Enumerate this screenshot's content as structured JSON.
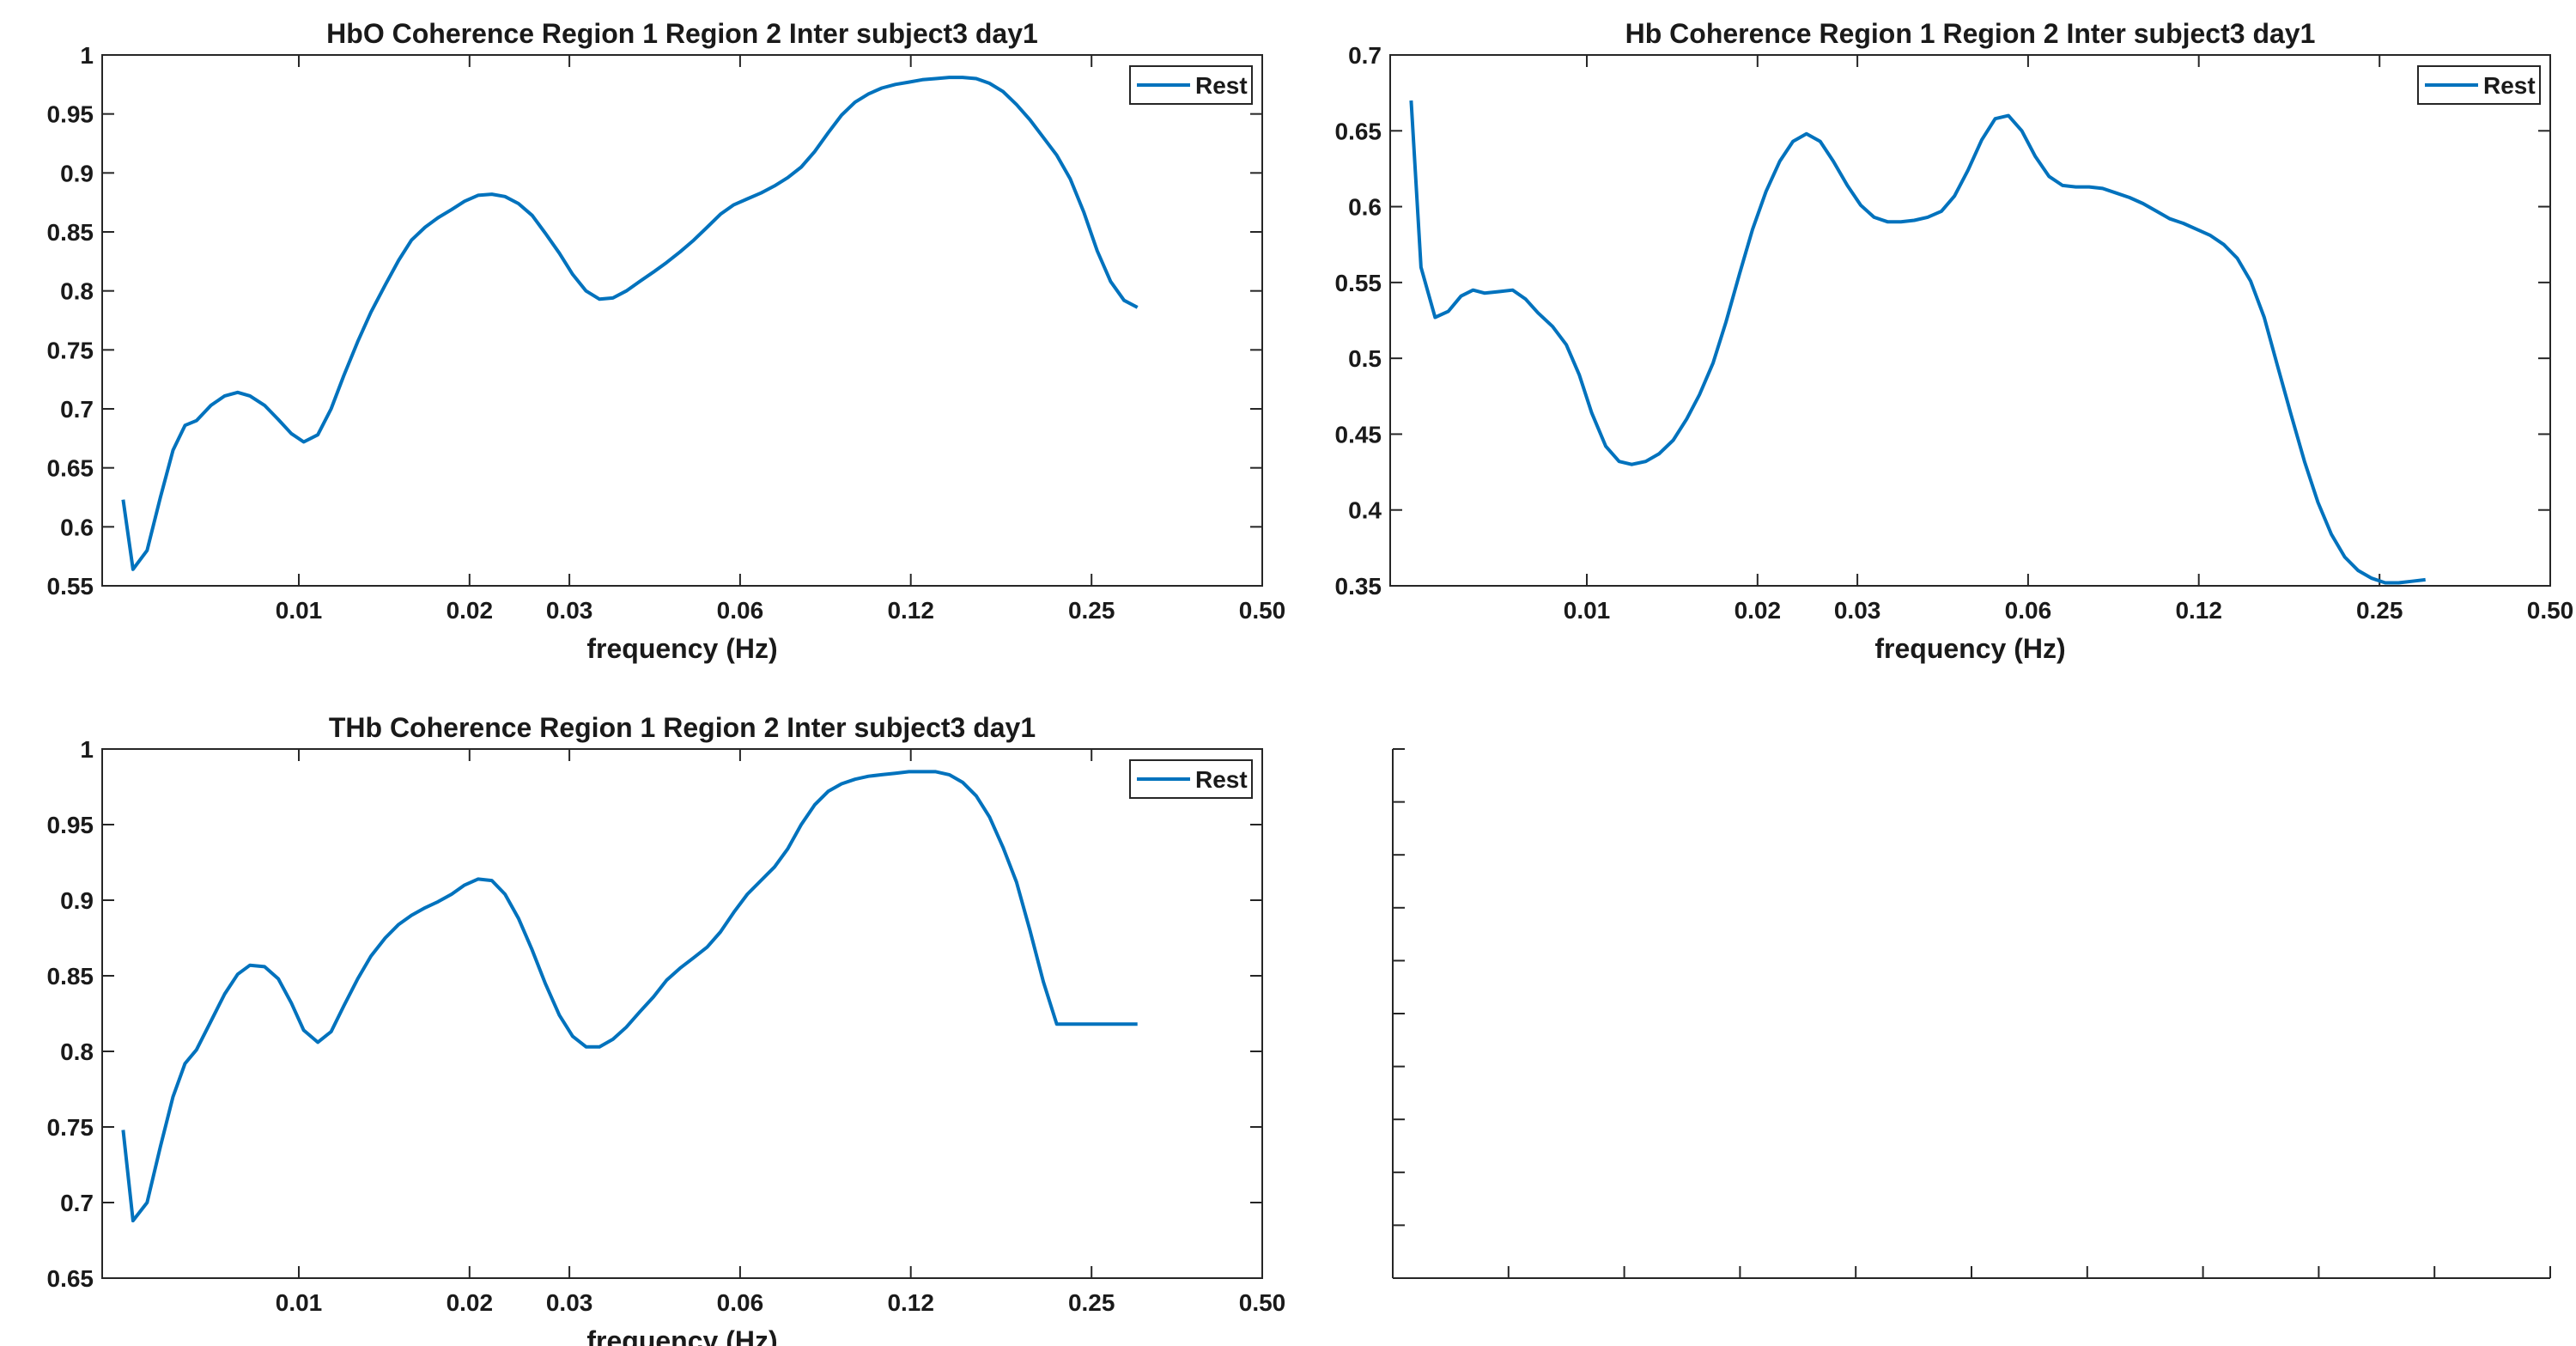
{
  "chart_data": [
    {
      "type": "line",
      "title": "HbO Coherence Region 1 Region 2 Inter subject3 day1",
      "xlabel": "frequency (Hz)",
      "ylabel": "",
      "x_scale": "log",
      "xlim": [
        0.0045,
        0.5
      ],
      "ylim": [
        0.55,
        1
      ],
      "xticks": [
        {
          "value": 0.01,
          "label": "0.01"
        },
        {
          "value": 0.02,
          "label": "0.02"
        },
        {
          "value": 0.03,
          "label": "0.03"
        },
        {
          "value": 0.06,
          "label": "0.06"
        },
        {
          "value": 0.12,
          "label": "0.12"
        },
        {
          "value": 0.25,
          "label": "0.25"
        },
        {
          "value": 0.5,
          "label": "0.50"
        }
      ],
      "yticks": [
        {
          "value": 0.55,
          "label": "0.55"
        },
        {
          "value": 0.6,
          "label": "0.6"
        },
        {
          "value": 0.65,
          "label": "0.65"
        },
        {
          "value": 0.7,
          "label": "0.7"
        },
        {
          "value": 0.75,
          "label": "0.75"
        },
        {
          "value": 0.8,
          "label": "0.8"
        },
        {
          "value": 0.85,
          "label": "0.85"
        },
        {
          "value": 0.9,
          "label": "0.9"
        },
        {
          "value": 0.95,
          "label": "0.95"
        },
        {
          "value": 1,
          "label": "1"
        }
      ],
      "legend": {
        "position": "top-right"
      },
      "series": [
        {
          "name": "Rest",
          "color": "#0072BD",
          "x": [
            0.0049,
            0.0051,
            0.0054,
            0.0057,
            0.006,
            0.0063,
            0.0066,
            0.007,
            0.0074,
            0.0078,
            0.0082,
            0.0087,
            0.0092,
            0.0097,
            0.0102,
            0.0108,
            0.0114,
            0.012,
            0.0127,
            0.0134,
            0.0142,
            0.015,
            0.0158,
            0.0167,
            0.0176,
            0.0186,
            0.0196,
            0.0207,
            0.0219,
            0.0231,
            0.0244,
            0.0258,
            0.0272,
            0.0288,
            0.0304,
            0.0321,
            0.0339,
            0.0358,
            0.0378,
            0.0399,
            0.0422,
            0.0445,
            0.047,
            0.0497,
            0.0525,
            0.0554,
            0.0585,
            0.0618,
            0.0653,
            0.069,
            0.0728,
            0.0769,
            0.0812,
            0.0858,
            0.0906,
            0.0957,
            0.1011,
            0.1067,
            0.1127,
            0.1191,
            0.1258,
            0.1328,
            0.1403,
            0.1481,
            0.1565,
            0.1652,
            0.1745,
            0.1843,
            0.1947,
            0.2056,
            0.2171,
            0.2293,
            0.2422,
            0.2558,
            0.2701,
            0.2853,
            0.3013
          ],
          "values": [
            0.623,
            0.564,
            0.58,
            0.625,
            0.665,
            0.686,
            0.69,
            0.703,
            0.711,
            0.714,
            0.711,
            0.703,
            0.691,
            0.679,
            0.672,
            0.678,
            0.7,
            0.728,
            0.757,
            0.782,
            0.805,
            0.826,
            0.843,
            0.854,
            0.862,
            0.869,
            0.876,
            0.881,
            0.882,
            0.88,
            0.874,
            0.864,
            0.849,
            0.832,
            0.814,
            0.8,
            0.793,
            0.794,
            0.8,
            0.808,
            0.816,
            0.824,
            0.833,
            0.843,
            0.854,
            0.865,
            0.873,
            0.878,
            0.883,
            0.889,
            0.896,
            0.905,
            0.918,
            0.934,
            0.949,
            0.96,
            0.967,
            0.972,
            0.975,
            0.977,
            0.979,
            0.98,
            0.981,
            0.981,
            0.98,
            0.976,
            0.969,
            0.958,
            0.945,
            0.93,
            0.915,
            0.895,
            0.867,
            0.834,
            0.808,
            0.792,
            0.786
          ]
        }
      ]
    },
    {
      "type": "line",
      "title": "Hb Coherence Region 1 Region 2 Inter subject3 day1",
      "xlabel": "frequency (Hz)",
      "ylabel": "",
      "x_scale": "log",
      "xlim": [
        0.0045,
        0.5
      ],
      "ylim": [
        0.35,
        0.7
      ],
      "xticks": [
        {
          "value": 0.01,
          "label": "0.01"
        },
        {
          "value": 0.02,
          "label": "0.02"
        },
        {
          "value": 0.03,
          "label": "0.03"
        },
        {
          "value": 0.06,
          "label": "0.06"
        },
        {
          "value": 0.12,
          "label": "0.12"
        },
        {
          "value": 0.25,
          "label": "0.25"
        },
        {
          "value": 0.5,
          "label": "0.50"
        }
      ],
      "yticks": [
        {
          "value": 0.35,
          "label": "0.35"
        },
        {
          "value": 0.4,
          "label": "0.4"
        },
        {
          "value": 0.45,
          "label": "0.45"
        },
        {
          "value": 0.5,
          "label": "0.5"
        },
        {
          "value": 0.55,
          "label": "0.55"
        },
        {
          "value": 0.6,
          "label": "0.6"
        },
        {
          "value": 0.65,
          "label": "0.65"
        },
        {
          "value": 0.7,
          "label": "0.7"
        }
      ],
      "legend": {
        "position": "top-right"
      },
      "series": [
        {
          "name": "Rest",
          "color": "#0072BD",
          "x": [
            0.0049,
            0.0051,
            0.0054,
            0.0057,
            0.006,
            0.0063,
            0.0066,
            0.007,
            0.0074,
            0.0078,
            0.0082,
            0.0087,
            0.0092,
            0.0097,
            0.0102,
            0.0108,
            0.0114,
            0.012,
            0.0127,
            0.0134,
            0.0142,
            0.015,
            0.0158,
            0.0167,
            0.0176,
            0.0186,
            0.0196,
            0.0207,
            0.0219,
            0.0231,
            0.0244,
            0.0258,
            0.0272,
            0.0288,
            0.0304,
            0.0321,
            0.0339,
            0.0358,
            0.0378,
            0.0399,
            0.0422,
            0.0445,
            0.047,
            0.0497,
            0.0525,
            0.0554,
            0.0585,
            0.0618,
            0.0653,
            0.069,
            0.0728,
            0.0769,
            0.0812,
            0.0858,
            0.0906,
            0.0957,
            0.1011,
            0.1067,
            0.1127,
            0.1191,
            0.1258,
            0.1328,
            0.1403,
            0.1481,
            0.1565,
            0.1652,
            0.1745,
            0.1843,
            0.1947,
            0.2056,
            0.2171,
            0.2293,
            0.2422,
            0.2558,
            0.2701,
            0.2853,
            0.3013
          ],
          "values": [
            0.67,
            0.56,
            0.527,
            0.531,
            0.541,
            0.545,
            0.543,
            0.544,
            0.545,
            0.539,
            0.53,
            0.521,
            0.509,
            0.489,
            0.464,
            0.442,
            0.432,
            0.43,
            0.432,
            0.437,
            0.446,
            0.46,
            0.476,
            0.497,
            0.524,
            0.556,
            0.585,
            0.61,
            0.63,
            0.643,
            0.648,
            0.643,
            0.63,
            0.614,
            0.601,
            0.593,
            0.59,
            0.59,
            0.591,
            0.593,
            0.597,
            0.607,
            0.624,
            0.644,
            0.658,
            0.66,
            0.65,
            0.633,
            0.62,
            0.614,
            0.613,
            0.613,
            0.612,
            0.609,
            0.606,
            0.602,
            0.597,
            0.592,
            0.589,
            0.585,
            0.581,
            0.575,
            0.566,
            0.551,
            0.527,
            0.495,
            0.463,
            0.432,
            0.405,
            0.384,
            0.369,
            0.36,
            0.355,
            0.352,
            0.352,
            0.353,
            0.354
          ]
        }
      ]
    },
    {
      "type": "line",
      "title": "THb Coherence Region 1 Region 2 Inter subject3 day1",
      "xlabel": "frequency (Hz)",
      "ylabel": "",
      "x_scale": "log",
      "xlim": [
        0.0045,
        0.5
      ],
      "ylim": [
        0.65,
        1
      ],
      "xticks": [
        {
          "value": 0.01,
          "label": "0.01"
        },
        {
          "value": 0.02,
          "label": "0.02"
        },
        {
          "value": 0.03,
          "label": "0.03"
        },
        {
          "value": 0.06,
          "label": "0.06"
        },
        {
          "value": 0.12,
          "label": "0.12"
        },
        {
          "value": 0.25,
          "label": "0.25"
        },
        {
          "value": 0.5,
          "label": "0.50"
        }
      ],
      "yticks": [
        {
          "value": 0.65,
          "label": "0.65"
        },
        {
          "value": 0.7,
          "label": "0.7"
        },
        {
          "value": 0.75,
          "label": "0.75"
        },
        {
          "value": 0.8,
          "label": "0.8"
        },
        {
          "value": 0.85,
          "label": "0.85"
        },
        {
          "value": 0.9,
          "label": "0.9"
        },
        {
          "value": 0.95,
          "label": "0.95"
        },
        {
          "value": 1,
          "label": "1"
        }
      ],
      "legend": {
        "position": "top-right"
      },
      "series": [
        {
          "name": "Rest",
          "color": "#0072BD",
          "x": [
            0.0049,
            0.0051,
            0.0054,
            0.0057,
            0.006,
            0.0063,
            0.0066,
            0.007,
            0.0074,
            0.0078,
            0.0082,
            0.0087,
            0.0092,
            0.0097,
            0.0102,
            0.0108,
            0.0114,
            0.012,
            0.0127,
            0.0134,
            0.0142,
            0.015,
            0.0158,
            0.0167,
            0.0176,
            0.0186,
            0.0196,
            0.0207,
            0.0219,
            0.0231,
            0.0244,
            0.0258,
            0.0272,
            0.0288,
            0.0304,
            0.0321,
            0.0339,
            0.0358,
            0.0378,
            0.0399,
            0.0422,
            0.0445,
            0.047,
            0.0497,
            0.0525,
            0.0554,
            0.0585,
            0.0618,
            0.0653,
            0.069,
            0.0728,
            0.0769,
            0.0812,
            0.0858,
            0.0906,
            0.0957,
            0.1011,
            0.1067,
            0.1127,
            0.1191,
            0.1258,
            0.1328,
            0.1403,
            0.1481,
            0.1565,
            0.1652,
            0.1745,
            0.1843,
            0.1947,
            0.2056,
            0.2171,
            0.2293,
            0.2422,
            0.2558,
            0.2701,
            0.2853,
            0.3013
          ],
          "values": [
            0.748,
            0.688,
            0.7,
            0.737,
            0.77,
            0.792,
            0.801,
            0.82,
            0.838,
            0.851,
            0.857,
            0.856,
            0.848,
            0.832,
            0.814,
            0.806,
            0.813,
            0.83,
            0.848,
            0.863,
            0.875,
            0.884,
            0.89,
            0.895,
            0.899,
            0.904,
            0.91,
            0.914,
            0.913,
            0.904,
            0.888,
            0.867,
            0.845,
            0.824,
            0.81,
            0.803,
            0.803,
            0.808,
            0.816,
            0.826,
            0.836,
            0.847,
            0.855,
            0.862,
            0.869,
            0.879,
            0.892,
            0.904,
            0.913,
            0.922,
            0.934,
            0.95,
            0.963,
            0.972,
            0.977,
            0.98,
            0.982,
            0.983,
            0.984,
            0.985,
            0.985,
            0.985,
            0.983,
            0.978,
            0.969,
            0.955,
            0.935,
            0.912,
            0.88,
            0.846,
            0.818,
            0.818,
            0.818,
            0.818,
            0.818,
            0.818,
            0.818
          ]
        }
      ]
    }
  ],
  "empty_axes": {
    "note": ""
  }
}
